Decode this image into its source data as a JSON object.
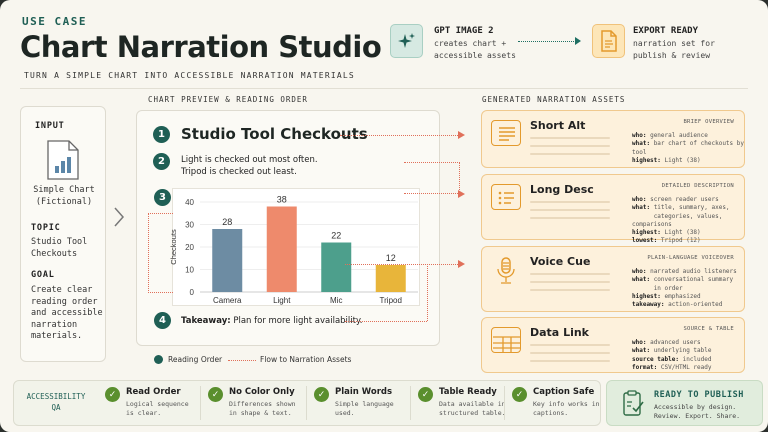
{
  "header": {
    "eyebrow": "USE CASE",
    "title": "Chart Narration Studio",
    "subtitle": "TURN A SIMPLE CHART INTO ACCESSIBLE NARRATION MATERIALS",
    "source": {
      "icon": "sparkle-icon",
      "title": "GPT IMAGE 2",
      "line1": "creates chart +",
      "line2": "accessible assets"
    },
    "target": {
      "icon": "document-icon",
      "title": "EXPORT READY",
      "line1": "narration set for",
      "line2": "publish & review"
    }
  },
  "input": {
    "heading": "INPUT",
    "file_icon": "chart-file-icon",
    "file_line1": "Simple Chart",
    "file_line2": "(Fictional)",
    "topic_heading": "TOPIC",
    "topic_line1": "Studio Tool",
    "topic_line2": "Checkouts",
    "goal_heading": "GOAL",
    "goal_lines": [
      "Create clear",
      "reading order",
      "and accessible",
      "narration",
      "materials."
    ]
  },
  "preview": {
    "label": "CHART PREVIEW & READING ORDER",
    "steps": [
      {
        "n": "1",
        "text": "Studio Tool Checkouts"
      },
      {
        "n": "2",
        "line1": "Light is checked out most often.",
        "line2": "Tripod is checked out least."
      },
      {
        "n": "3"
      },
      {
        "n": "4",
        "bold": "Takeaway:",
        "text": "Plan for more light availability."
      }
    ],
    "legend": {
      "order": "Reading Order",
      "flow": "Flow to Narration Assets"
    }
  },
  "chart_data": {
    "type": "bar",
    "categories": [
      "Camera",
      "Light",
      "Mic",
      "Tripod"
    ],
    "values": [
      28,
      38,
      22,
      12
    ],
    "ylabel": "Checkouts",
    "ylim": [
      0,
      40
    ],
    "yticks": [
      0,
      10,
      20,
      30,
      40
    ],
    "grid": true,
    "colors": [
      "#6d8ca3",
      "#ee8a6c",
      "#4d9f8c",
      "#e8b53a"
    ]
  },
  "assets": {
    "label": "GENERATED NARRATION ASSETS",
    "cards": [
      {
        "title": "Short Alt",
        "tag": "BRIEF OVERVIEW",
        "icon": "text-lines-icon",
        "meta": [
          [
            "who:",
            "general audience"
          ],
          [
            "what:",
            "bar chart of checkouts by tool"
          ],
          [
            "highest:",
            "Light (38)"
          ]
        ]
      },
      {
        "title": "Long Desc",
        "tag": "DETAILED DESCRIPTION",
        "icon": "list-icon",
        "meta": [
          [
            "who:",
            "screen reader users"
          ],
          [
            "what:",
            "title, summary, axes,"
          ],
          [
            "",
            "categories, values, comparisons"
          ],
          [
            "highest:",
            "Light (38)"
          ],
          [
            "lowest:",
            "Tripod (12)"
          ]
        ]
      },
      {
        "title": "Voice Cue",
        "tag": "PLAIN-LANGUAGE VOICEOVER",
        "icon": "microphone-icon",
        "meta": [
          [
            "who:",
            "narrated audio listeners"
          ],
          [
            "what:",
            "conversational summary"
          ],
          [
            "",
            "in order"
          ],
          [
            "highest:",
            "emphasized"
          ],
          [
            "takeaway:",
            "action-oriented"
          ]
        ]
      },
      {
        "title": "Data Link",
        "tag": "SOURCE & TABLE",
        "icon": "table-icon",
        "meta": [
          [
            "who:",
            "advanced users"
          ],
          [
            "what:",
            "underlying table"
          ],
          [
            "source table:",
            "included"
          ],
          [
            "format:",
            "CSV/HTML ready"
          ]
        ]
      }
    ]
  },
  "qa": {
    "label_line1": "ACCESSIBILITY",
    "label_line2": "QA",
    "items": [
      {
        "title": "Read Order",
        "l1": "Logical sequence",
        "l2": "is clear."
      },
      {
        "title": "No Color Only",
        "l1": "Differences shown",
        "l2": "in shape & text."
      },
      {
        "title": "Plain Words",
        "l1": "Simple language",
        "l2": "used."
      },
      {
        "title": "Table Ready",
        "l1": "Data available in",
        "l2": "structured table."
      },
      {
        "title": "Caption Safe",
        "l1": "Key info works in",
        "l2": "captions."
      }
    ]
  },
  "publish": {
    "title": "READY TO PUBLISH",
    "line1": "Accessible by design.",
    "line2": "Review. Export. Share."
  }
}
